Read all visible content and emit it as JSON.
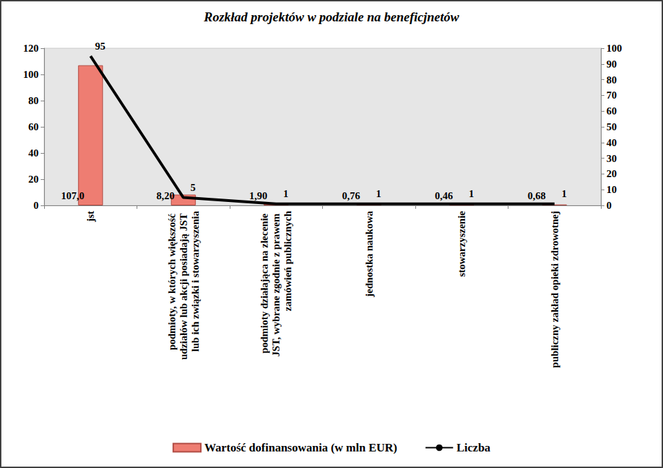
{
  "chart_data": {
    "type": "bar",
    "title": "Rozkład projektów w podziale na beneficjnetów",
    "categories": [
      "jst",
      "podmioty, w których większość udziałów lub akcji posiadają JST lub ich związki i stowarzyszenia",
      "podmioty działająca na zlecenie JST, wybrane zgodnie z prawem zamówień publicznych",
      "jednostka naukowa",
      "stowarzyszenie",
      "publiczny zakład opieki zdrowotnej"
    ],
    "series": [
      {
        "name": "Wartość dofinansowania (w mln EUR)",
        "type": "bar",
        "color": "#ee7d72",
        "values": [
          107.0,
          8.2,
          1.9,
          0.76,
          0.46,
          0.68
        ],
        "value_labels": [
          "107,0",
          "8,20",
          "1,90",
          "0,76",
          "0,46",
          "0,68"
        ]
      },
      {
        "name": "Liczba",
        "type": "line",
        "axis": "y2",
        "color": "#000000",
        "values": [
          95,
          5,
          1,
          1,
          1,
          1
        ]
      }
    ],
    "ylim": [
      0,
      120
    ],
    "yticks": [
      0,
      20,
      40,
      60,
      80,
      100,
      120
    ],
    "y2lim": [
      0,
      100
    ],
    "y2ticks": [
      0,
      10,
      20,
      30,
      40,
      50,
      60,
      70,
      80,
      90,
      100
    ],
    "data_labels": true,
    "legend": "bottom",
    "grid": false
  }
}
